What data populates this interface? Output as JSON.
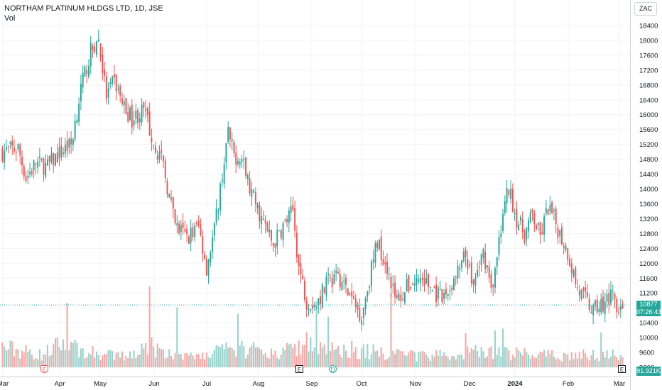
{
  "legend": {
    "title": "NORTHAM PLATINUM HLDGS LTD, 1D, JSE",
    "volume_label": "Vol"
  },
  "currency": "ZAC",
  "last_price": {
    "value": "10877",
    "countdown": "07:26:43"
  },
  "last_volume": "91.921K",
  "events": [
    {
      "label": "E",
      "kind": "earnings-red",
      "date": "Apr"
    },
    {
      "label": "E",
      "kind": "earnings",
      "date": "Aug"
    },
    {
      "label": "D",
      "kind": "dividend",
      "date": "Sep"
    },
    {
      "label": "E",
      "kind": "earnings",
      "date": "Mar"
    }
  ],
  "colors": {
    "up": "#26a69a",
    "down": "#ef5350",
    "up_volume": "#9ad3cc",
    "down_volume": "#f7a9a7"
  },
  "chart_data": {
    "type": "candlestick",
    "title": "NORTHAM PLATINUM HLDGS LTD, 1D, JSE",
    "xlabel": "",
    "ylabel": "",
    "x_ticks": [
      "Mar",
      "Apr",
      "May",
      "Jun",
      "Jul",
      "Aug",
      "Sep",
      "Oct",
      "Nov",
      "Dec",
      "2024",
      "Feb",
      "Mar"
    ],
    "y_ticks": [
      9200,
      9600,
      10000,
      10400,
      10800,
      11200,
      11600,
      12000,
      12400,
      12800,
      13200,
      13600,
      14000,
      14400,
      14800,
      15200,
      15600,
      16000,
      16400,
      16800,
      17200,
      17600,
      18000,
      18400
    ],
    "ylim": [
      9100,
      18700
    ],
    "price_anchors": [
      [
        0,
        15000
      ],
      [
        8,
        15100
      ],
      [
        12,
        14300
      ],
      [
        17,
        14700
      ],
      [
        23,
        14600
      ],
      [
        28,
        14900
      ],
      [
        35,
        15200
      ],
      [
        40,
        16700
      ],
      [
        45,
        17700
      ],
      [
        49,
        18000
      ],
      [
        53,
        16500
      ],
      [
        57,
        16900
      ],
      [
        62,
        16200
      ],
      [
        66,
        15900
      ],
      [
        72,
        16100
      ],
      [
        77,
        15300
      ],
      [
        82,
        14600
      ],
      [
        88,
        13000
      ],
      [
        94,
        12700
      ],
      [
        100,
        13000
      ],
      [
        104,
        11900
      ],
      [
        108,
        12900
      ],
      [
        112,
        14400
      ],
      [
        115,
        15500
      ],
      [
        118,
        14900
      ],
      [
        122,
        14800
      ],
      [
        126,
        14000
      ],
      [
        132,
        13200
      ],
      [
        138,
        12500
      ],
      [
        143,
        13000
      ],
      [
        148,
        13400
      ],
      [
        151,
        11900
      ],
      [
        155,
        11000
      ],
      [
        160,
        10900
      ],
      [
        166,
        11500
      ],
      [
        172,
        11600
      ],
      [
        178,
        11000
      ],
      [
        183,
        10600
      ],
      [
        187,
        11600
      ],
      [
        191,
        12600
      ],
      [
        196,
        11900
      ],
      [
        201,
        11000
      ],
      [
        207,
        11400
      ],
      [
        213,
        11600
      ],
      [
        219,
        11300
      ],
      [
        224,
        11000
      ],
      [
        230,
        11500
      ],
      [
        236,
        12200
      ],
      [
        240,
        11400
      ],
      [
        245,
        12300
      ],
      [
        250,
        11300
      ],
      [
        255,
        13400
      ],
      [
        258,
        14000
      ],
      [
        262,
        13200
      ],
      [
        266,
        12800
      ],
      [
        270,
        13300
      ],
      [
        274,
        12700
      ],
      [
        278,
        13500
      ],
      [
        281,
        13200
      ],
      [
        284,
        12800
      ],
      [
        288,
        12300
      ],
      [
        293,
        11300
      ],
      [
        297,
        11000
      ],
      [
        301,
        10700
      ],
      [
        305,
        10900
      ],
      [
        309,
        11100
      ],
      [
        314,
        10900
      ],
      [
        316,
        10877
      ]
    ],
    "volume_anchors": [
      [
        0,
        0.23
      ],
      [
        20,
        0.14
      ],
      [
        34,
        0.32
      ],
      [
        40,
        0.18
      ],
      [
        60,
        0.12
      ],
      [
        75,
        0.24
      ],
      [
        90,
        0.11
      ],
      [
        108,
        0.16
      ],
      [
        120,
        0.22
      ],
      [
        140,
        0.15
      ],
      [
        155,
        0.3
      ],
      [
        165,
        0.25
      ],
      [
        180,
        0.2
      ],
      [
        200,
        0.15
      ],
      [
        225,
        0.13
      ],
      [
        240,
        0.17
      ],
      [
        260,
        0.16
      ],
      [
        280,
        0.13
      ],
      [
        300,
        0.14
      ],
      [
        316,
        0.16
      ]
    ],
    "volume_spikes": [
      [
        33,
        0.7
      ],
      [
        75,
        0.88
      ],
      [
        89,
        0.65
      ],
      [
        120,
        0.58
      ],
      [
        160,
        0.72
      ],
      [
        166,
        0.55
      ],
      [
        198,
        0.8
      ],
      [
        236,
        0.37
      ],
      [
        251,
        0.4
      ],
      [
        255,
        0.42
      ],
      [
        305,
        0.38
      ]
    ]
  }
}
